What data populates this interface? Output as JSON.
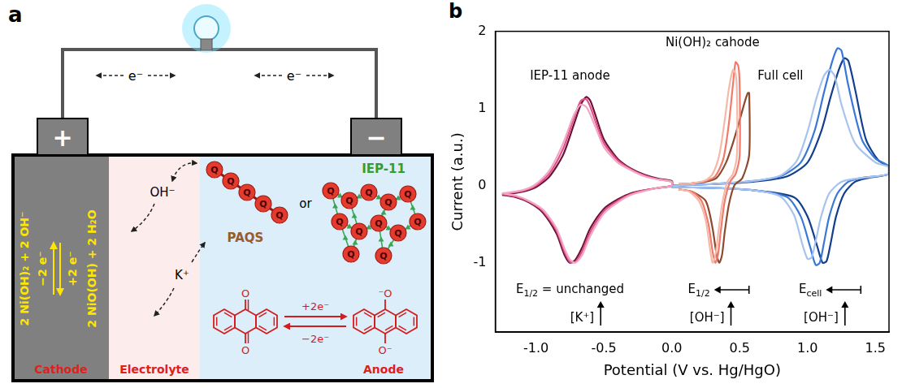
{
  "diagram": {
    "label": "a",
    "terminals": [
      "+",
      "−"
    ],
    "electron": "e⁻",
    "cathode": {
      "label": "Cathode",
      "reactant": "2 Ni(OH)₂ + 2 OH⁻",
      "product": "2 NiO(OH) + 2 H₂O",
      "forward": "−2 e⁻",
      "backward": "+2 e⁻"
    },
    "electrolyte": {
      "label": "Electrolyte",
      "ions": [
        "OH⁻",
        "K⁺"
      ]
    },
    "anode": {
      "label": "Anode",
      "polymers": [
        "PAQS",
        "IEP-11"
      ],
      "conjunction": "or",
      "unit": "Q",
      "oxidized": [
        "O",
        "O"
      ],
      "reduced": [
        "⁻O",
        "O⁻"
      ],
      "forward": "+2e⁻",
      "backward": "−2e⁻"
    }
  },
  "chart_data": {
    "type": "line",
    "label": "b",
    "x_label": "Potential (V vs. Hg/HgO)",
    "y_label": "Current (a.u.)",
    "xlim": [
      -1.3,
      1.6
    ],
    "xticks": [
      {
        "value": -1,
        "label": "-1.0"
      },
      -0.5,
      {
        "value": 0,
        "label": "0.0"
      },
      0.5,
      {
        "value": 1,
        "label": "1.0"
      },
      1.5
    ],
    "ylim": [
      -1.9,
      2
    ],
    "yticks": [
      -1,
      0,
      1,
      2
    ],
    "grid": false,
    "annotations": [
      {
        "text": "IEP-11 anode"
      },
      {
        "text": "Ni(OH)₂ cahode"
      },
      {
        "text": "Full cell"
      },
      {
        "text": "E",
        "sub": "1/2",
        "rest": " = unchanged"
      },
      {
        "text": "[K⁺]"
      },
      {
        "text": "E",
        "sub": "1/2"
      },
      {
        "text": "[OH⁻]"
      },
      {
        "text": "E",
        "sub": "cell"
      },
      {
        "text": "[OH⁻]"
      }
    ],
    "series": [
      {
        "color": "#f2a6c4",
        "x": [
          -1.25,
          -1.1,
          -1.0,
          -0.9,
          -0.8,
          -0.72,
          -0.67,
          -0.63,
          -0.6,
          -0.56,
          -0.5,
          -0.4,
          -0.3,
          -0.2,
          -0.1,
          0.0,
          0.0,
          -0.1,
          -0.2,
          -0.3,
          -0.4,
          -0.5,
          -0.6,
          -0.66,
          -0.71,
          -0.75,
          -0.79,
          -0.85,
          -0.95,
          -1.05,
          -1.15,
          -1.25
        ],
        "values": [
          -0.1,
          -0.06,
          0.02,
          0.2,
          0.55,
          0.92,
          1.05,
          1.02,
          0.92,
          0.75,
          0.5,
          0.3,
          0.2,
          0.12,
          0.08,
          0.05,
          0.0,
          -0.03,
          -0.07,
          -0.12,
          -0.22,
          -0.36,
          -0.65,
          -0.9,
          -1.0,
          -0.96,
          -0.82,
          -0.55,
          -0.31,
          -0.2,
          -0.13,
          -0.1
        ]
      },
      {
        "color": "#e2508a",
        "x": [
          -1.25,
          -1.1,
          -1.0,
          -0.9,
          -0.8,
          -0.72,
          -0.67,
          -0.63,
          -0.6,
          -0.56,
          -0.5,
          -0.4,
          -0.3,
          -0.2,
          -0.1,
          0.0,
          0.0,
          -0.1,
          -0.2,
          -0.3,
          -0.4,
          -0.5,
          -0.6,
          -0.66,
          -0.71,
          -0.75,
          -0.79,
          -0.85,
          -0.95,
          -1.05,
          -1.15,
          -1.25
        ],
        "values": [
          -0.11,
          -0.07,
          0.0,
          0.16,
          0.48,
          0.88,
          1.1,
          1.12,
          1.02,
          0.82,
          0.55,
          0.33,
          0.21,
          0.13,
          0.08,
          0.05,
          0.0,
          -0.03,
          -0.06,
          -0.11,
          -0.2,
          -0.33,
          -0.6,
          -0.85,
          -0.99,
          -0.99,
          -0.86,
          -0.58,
          -0.33,
          -0.21,
          -0.14,
          -0.11
        ]
      },
      {
        "color": "#6b1236",
        "x": [
          -1.25,
          -1.1,
          -1.0,
          -0.9,
          -0.8,
          -0.72,
          -0.67,
          -0.63,
          -0.6,
          -0.56,
          -0.5,
          -0.4,
          -0.3,
          -0.2,
          -0.1,
          0.0,
          0.0,
          -0.1,
          -0.2,
          -0.3,
          -0.4,
          -0.5,
          -0.6,
          -0.66,
          -0.71,
          -0.75,
          -0.79,
          -0.85,
          -0.95,
          -1.05,
          -1.15,
          -1.25
        ],
        "values": [
          -0.12,
          -0.08,
          -0.02,
          0.12,
          0.4,
          0.8,
          1.05,
          1.15,
          1.1,
          0.9,
          0.6,
          0.35,
          0.22,
          0.14,
          0.09,
          0.06,
          0.0,
          -0.03,
          -0.06,
          -0.1,
          -0.18,
          -0.3,
          -0.55,
          -0.8,
          -0.96,
          -1.0,
          -0.9,
          -0.62,
          -0.35,
          -0.22,
          -0.15,
          -0.12
        ]
      },
      {
        "color": "#f6b8a8",
        "x": [
          0.05,
          0.15,
          0.25,
          0.3,
          0.35,
          0.39,
          0.42,
          0.45,
          0.47,
          0.48,
          0.48,
          0.45,
          0.41,
          0.37,
          0.34,
          0.32,
          0.3,
          0.28,
          0.25,
          0.2,
          0.13,
          0.05
        ],
        "values": [
          0.02,
          0.03,
          0.07,
          0.15,
          0.4,
          0.85,
          1.25,
          1.5,
          1.45,
          1.2,
          0.4,
          0.15,
          0.05,
          -0.25,
          -0.65,
          -0.92,
          -1.0,
          -0.8,
          -0.45,
          -0.2,
          -0.08,
          -0.05
        ]
      },
      {
        "color": "#f27a6a",
        "x": [
          0.05,
          0.15,
          0.25,
          0.32,
          0.38,
          0.42,
          0.45,
          0.47,
          0.49,
          0.5,
          0.5,
          0.47,
          0.43,
          0.39,
          0.36,
          0.34,
          0.32,
          0.3,
          0.27,
          0.22,
          0.15,
          0.05
        ],
        "values": [
          0.02,
          0.03,
          0.06,
          0.12,
          0.35,
          0.8,
          1.3,
          1.6,
          1.55,
          1.3,
          0.4,
          0.15,
          0.05,
          -0.2,
          -0.6,
          -0.9,
          -1.0,
          -0.85,
          -0.5,
          -0.2,
          -0.08,
          -0.05
        ]
      },
      {
        "color": "#8c4a2f",
        "x": [
          0.05,
          0.15,
          0.25,
          0.33,
          0.4,
          0.45,
          0.5,
          0.54,
          0.56,
          0.57,
          0.57,
          0.52,
          0.46,
          0.42,
          0.39,
          0.37,
          0.35,
          0.33,
          0.3,
          0.25,
          0.15,
          0.05
        ],
        "values": [
          0.02,
          0.03,
          0.05,
          0.1,
          0.3,
          0.55,
          0.85,
          1.1,
          1.2,
          1.2,
          0.4,
          0.1,
          0.0,
          -0.25,
          -0.6,
          -0.9,
          -1.0,
          -0.9,
          -0.55,
          -0.2,
          -0.08,
          -0.05
        ]
      },
      {
        "color": "#a8c4ee",
        "x": [
          0.0,
          0.3,
          0.6,
          0.8,
          0.92,
          1.0,
          1.06,
          1.12,
          1.16,
          1.2,
          1.25,
          1.35,
          1.5,
          1.6,
          1.6,
          1.4,
          1.25,
          1.16,
          1.1,
          1.06,
          1.03,
          1.0,
          0.96,
          0.9,
          0.8,
          0.6,
          0.3,
          0.0
        ],
        "values": [
          0.0,
          0.02,
          0.06,
          0.13,
          0.32,
          0.7,
          1.1,
          1.42,
          1.5,
          1.42,
          1.05,
          0.55,
          0.3,
          0.24,
          0.15,
          0.1,
          0.05,
          -0.1,
          -0.4,
          -0.72,
          -0.93,
          -0.95,
          -0.75,
          -0.38,
          -0.14,
          -0.06,
          -0.03,
          -0.02
        ]
      },
      {
        "color": "#3a78d8",
        "x": [
          0.0,
          0.3,
          0.6,
          0.8,
          0.95,
          1.05,
          1.12,
          1.18,
          1.22,
          1.25,
          1.3,
          1.4,
          1.5,
          1.6,
          1.6,
          1.4,
          1.3,
          1.22,
          1.16,
          1.12,
          1.09,
          1.06,
          1.02,
          0.95,
          0.85,
          0.6,
          0.3,
          0.0
        ],
        "values": [
          0.0,
          0.02,
          0.06,
          0.12,
          0.3,
          0.7,
          1.2,
          1.6,
          1.78,
          1.75,
          1.3,
          0.6,
          0.35,
          0.25,
          0.15,
          0.1,
          0.05,
          -0.1,
          -0.4,
          -0.75,
          -1.0,
          -1.03,
          -0.8,
          -0.4,
          -0.15,
          -0.06,
          -0.03,
          -0.02
        ]
      },
      {
        "color": "#123e8c",
        "x": [
          0.0,
          0.3,
          0.6,
          0.85,
          1.0,
          1.1,
          1.17,
          1.23,
          1.27,
          1.3,
          1.35,
          1.43,
          1.52,
          1.6,
          1.6,
          1.45,
          1.35,
          1.27,
          1.21,
          1.17,
          1.14,
          1.11,
          1.07,
          1.0,
          0.9,
          0.6,
          0.3,
          0.0
        ],
        "values": [
          0.0,
          0.02,
          0.05,
          0.12,
          0.3,
          0.7,
          1.15,
          1.5,
          1.65,
          1.62,
          1.25,
          0.6,
          0.33,
          0.24,
          0.15,
          0.1,
          0.05,
          -0.1,
          -0.4,
          -0.75,
          -0.98,
          -1.0,
          -0.78,
          -0.4,
          -0.15,
          -0.06,
          -0.03,
          -0.02
        ]
      }
    ]
  }
}
